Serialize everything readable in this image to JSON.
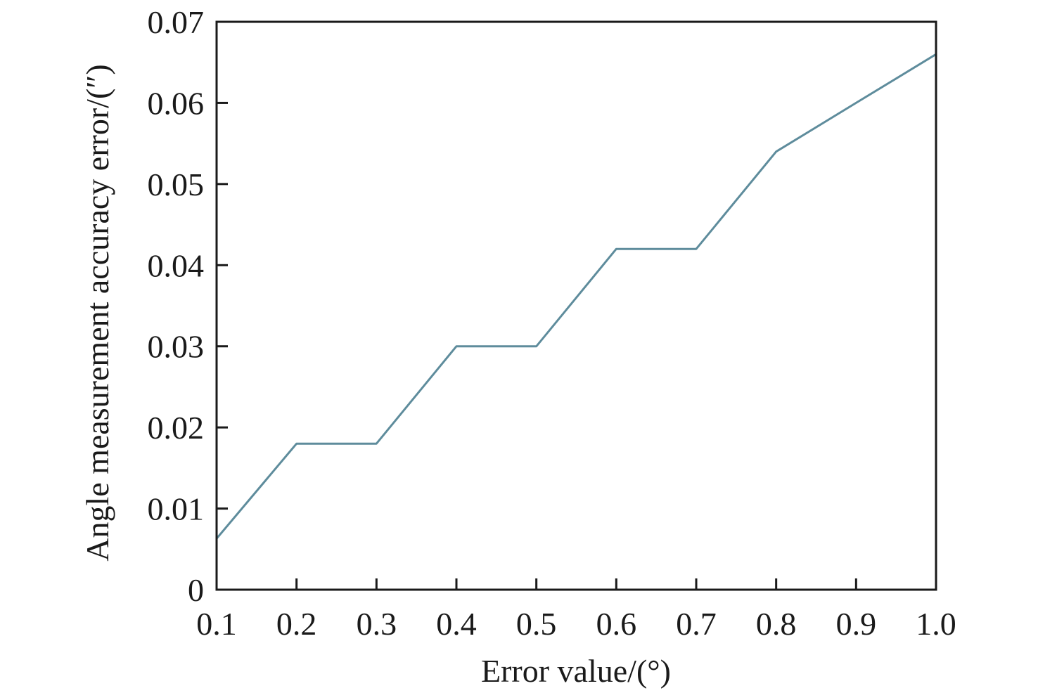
{
  "chart_data": {
    "type": "line",
    "xlabel": "Error value/(°)",
    "ylabel": "Angle measurement accuracy error/(″)",
    "xlim": [
      0.1,
      1.0
    ],
    "ylim": [
      0,
      0.07
    ],
    "x_ticks": [
      "0.1",
      "0.2",
      "0.3",
      "0.4",
      "0.5",
      "0.6",
      "0.7",
      "0.8",
      "0.9",
      "1.0"
    ],
    "y_ticks": [
      "0",
      "0.01",
      "0.02",
      "0.03",
      "0.04",
      "0.05",
      "0.06",
      "0.07"
    ],
    "grid": false,
    "series": [
      {
        "color": "#5e8c9c",
        "x": [
          0.1,
          0.2,
          0.3,
          0.4,
          0.5,
          0.6,
          0.7,
          0.8,
          0.9,
          1.0
        ],
        "y": [
          0.0063,
          0.018,
          0.018,
          0.03,
          0.03,
          0.042,
          0.042,
          0.054,
          0.06,
          0.066
        ]
      }
    ]
  }
}
